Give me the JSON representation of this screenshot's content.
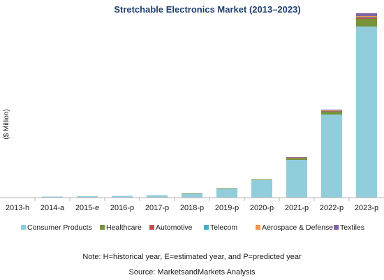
{
  "chart_data": {
    "type": "bar",
    "stacked": true,
    "title": "Stretchable Electronics Market (2013–2023)",
    "ylabel": "($ Million)",
    "xlabel": "",
    "categories": [
      "2013-h",
      "2014-a",
      "2015-e",
      "2016-p",
      "2017-p",
      "2018-p",
      "2019-p",
      "2020-p",
      "2021-p",
      "2022-p",
      "2023-p"
    ],
    "series": [
      {
        "name": "Consumer Products",
        "color": "#92cddc",
        "values": [
          0.3,
          1.5,
          2,
          2.5,
          3.5,
          6,
          13,
          25,
          54,
          119,
          245
        ]
      },
      {
        "name": "Healthcare",
        "color": "#77933c",
        "values": [
          0,
          0,
          0,
          0,
          0,
          0.2,
          0.5,
          1,
          2.5,
          4,
          11
        ]
      },
      {
        "name": "Automotive",
        "color": "#c0504d",
        "values": [
          0,
          0,
          0,
          0,
          0,
          0,
          0,
          0,
          0.5,
          1,
          2
        ]
      },
      {
        "name": "Telecom",
        "color": "#4bacc6",
        "values": [
          0,
          0,
          0,
          0,
          0,
          0,
          0,
          0,
          0.3,
          0.5,
          1
        ]
      },
      {
        "name": "Aerospace & Defense",
        "color": "#f79646",
        "values": [
          0,
          0,
          0,
          0,
          0,
          0,
          0,
          0,
          0.2,
          0.5,
          1
        ]
      },
      {
        "name": "Textiles",
        "color": "#8064a2",
        "values": [
          0,
          0,
          0,
          0,
          0,
          0,
          0,
          0,
          0.5,
          1,
          4
        ]
      }
    ],
    "ylim": [
      0,
      270
    ],
    "grid": false,
    "legend_position": "bottom"
  },
  "footer": {
    "note": "Note: H=historical year, E=estimated year, and P=predicted year",
    "source": "Source: MarketsandMarkets Analysis"
  }
}
